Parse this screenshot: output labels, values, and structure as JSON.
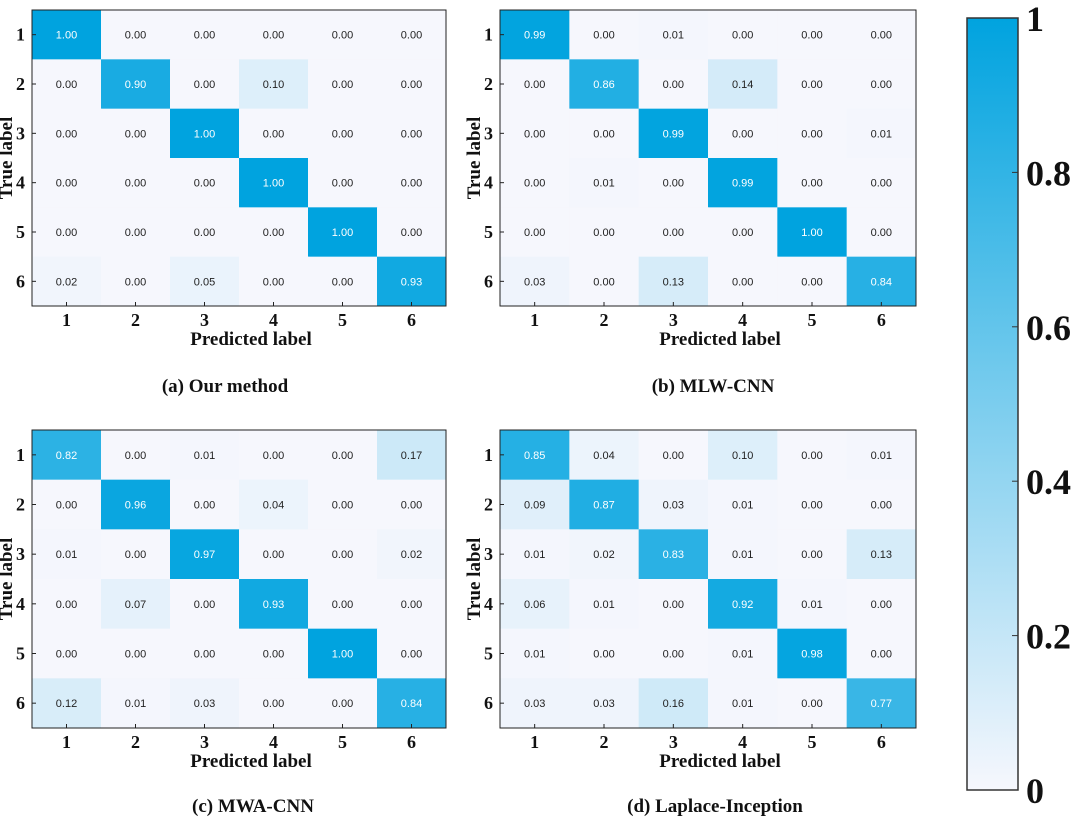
{
  "colorbar": {
    "ticks": [
      "0",
      "0.2",
      "0.4",
      "0.6",
      "0.8",
      "1"
    ],
    "tick_values": [
      0,
      0.2,
      0.4,
      0.6,
      0.8,
      1
    ],
    "color_low": "#f6f7fd",
    "color_high": "#00a3df",
    "range": [
      0,
      1
    ]
  },
  "chart_data": [
    {
      "type": "heatmap",
      "caption": "(a) Our method",
      "xlabel": "Predicted label",
      "ylabel": "True label",
      "x_categories": [
        "1",
        "2",
        "3",
        "4",
        "5",
        "6"
      ],
      "y_categories": [
        "1",
        "2",
        "3",
        "4",
        "5",
        "6"
      ],
      "values": [
        [
          1.0,
          0.0,
          0.0,
          0.0,
          0.0,
          0.0
        ],
        [
          0.0,
          0.9,
          0.0,
          0.1,
          0.0,
          0.0
        ],
        [
          0.0,
          0.0,
          1.0,
          0.0,
          0.0,
          0.0
        ],
        [
          0.0,
          0.0,
          0.0,
          1.0,
          0.0,
          0.0
        ],
        [
          0.0,
          0.0,
          0.0,
          0.0,
          1.0,
          0.0
        ],
        [
          0.02,
          0.0,
          0.05,
          0.0,
          0.0,
          0.93
        ]
      ]
    },
    {
      "type": "heatmap",
      "caption": "(b) MLW-CNN",
      "xlabel": "Predicted label",
      "ylabel": "True label",
      "x_categories": [
        "1",
        "2",
        "3",
        "4",
        "5",
        "6"
      ],
      "y_categories": [
        "1",
        "2",
        "3",
        "4",
        "5",
        "6"
      ],
      "values": [
        [
          0.99,
          0.0,
          0.01,
          0.0,
          0.0,
          0.0
        ],
        [
          0.0,
          0.86,
          0.0,
          0.14,
          0.0,
          0.0
        ],
        [
          0.0,
          0.0,
          0.99,
          0.0,
          0.0,
          0.01
        ],
        [
          0.0,
          0.01,
          0.0,
          0.99,
          0.0,
          0.0
        ],
        [
          0.0,
          0.0,
          0.0,
          0.0,
          1.0,
          0.0
        ],
        [
          0.03,
          0.0,
          0.13,
          0.0,
          0.0,
          0.84
        ]
      ]
    },
    {
      "type": "heatmap",
      "caption": "(c) MWA-CNN",
      "xlabel": "Predicted label",
      "ylabel": "True label",
      "x_categories": [
        "1",
        "2",
        "3",
        "4",
        "5",
        "6"
      ],
      "y_categories": [
        "1",
        "2",
        "3",
        "4",
        "5",
        "6"
      ],
      "values": [
        [
          0.82,
          0.0,
          0.01,
          0.0,
          0.0,
          0.17
        ],
        [
          0.0,
          0.96,
          0.0,
          0.04,
          0.0,
          0.0
        ],
        [
          0.01,
          0.0,
          0.97,
          0.0,
          0.0,
          0.02
        ],
        [
          0.0,
          0.07,
          0.0,
          0.93,
          0.0,
          0.0
        ],
        [
          0.0,
          0.0,
          0.0,
          0.0,
          1.0,
          0.0
        ],
        [
          0.12,
          0.01,
          0.03,
          0.0,
          0.0,
          0.84
        ]
      ]
    },
    {
      "type": "heatmap",
      "caption": "(d) Laplace-Inception",
      "xlabel": "Predicted label",
      "ylabel": "True label",
      "x_categories": [
        "1",
        "2",
        "3",
        "4",
        "5",
        "6"
      ],
      "y_categories": [
        "1",
        "2",
        "3",
        "4",
        "5",
        "6"
      ],
      "values": [
        [
          0.85,
          0.04,
          0.0,
          0.1,
          0.0,
          0.01
        ],
        [
          0.09,
          0.87,
          0.03,
          0.01,
          0.0,
          0.0
        ],
        [
          0.01,
          0.02,
          0.83,
          0.01,
          0.0,
          0.13
        ],
        [
          0.06,
          0.01,
          0.0,
          0.92,
          0.01,
          0.0
        ],
        [
          0.01,
          0.0,
          0.0,
          0.01,
          0.98,
          0.0
        ],
        [
          0.03,
          0.03,
          0.16,
          0.01,
          0.0,
          0.77
        ]
      ]
    }
  ]
}
